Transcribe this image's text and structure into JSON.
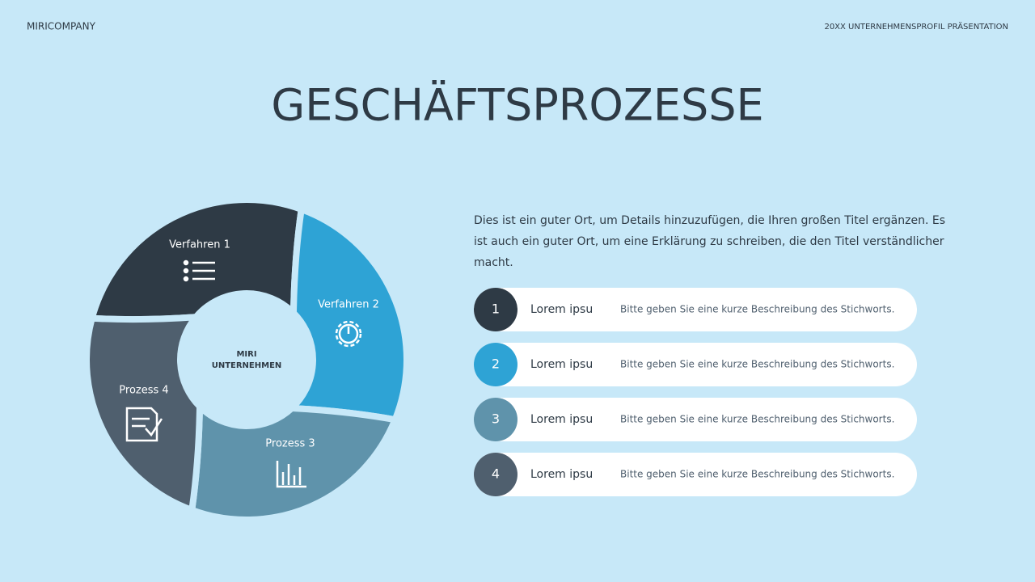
{
  "header": {
    "company": "MIRICOMPANY",
    "subtitle": "20XX UNTERNEHMENSPROFIL PRÄSENTATION"
  },
  "title": "GESCHÄFTSPROZESSE",
  "description": "Dies ist ein guter Ort, um Details hinzuzufügen, die Ihren großen Titel ergänzen. Es ist auch ein guter Ort, um eine Erklärung zu schreiben, die den Titel verständlicher macht.",
  "diagram": {
    "center": [
      "MIRI",
      "UNTERNEHMEN"
    ],
    "segments": [
      {
        "label": "Verfahren 1"
      },
      {
        "label": "Verfahren 2"
      },
      {
        "label": "Prozess 3"
      },
      {
        "label": "Prozess 4"
      }
    ]
  },
  "list": [
    {
      "number": 1,
      "title": "Lorem ipsu",
      "text": "Bitte geben Sie eine kurze Beschreibung des Stichworts."
    },
    {
      "number": 2,
      "title": "Lorem ipsu",
      "text": "Bitte geben Sie eine kurze Beschreibung des Stichworts."
    },
    {
      "number": 3,
      "title": "Lorem ipsu",
      "text": "Bitte geben Sie eine kurze Beschreibung des Stichworts."
    },
    {
      "number": 4,
      "title": "Lorem ipsu",
      "text": "Bitte geben Sie eine kurze Beschreibung des Stichworts."
    }
  ]
}
